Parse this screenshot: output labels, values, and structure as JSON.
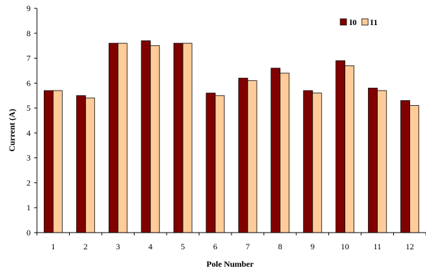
{
  "chart_data": {
    "type": "bar",
    "title": "",
    "xlabel": "Pole Number",
    "ylabel": "Current (A)",
    "categories": [
      "1",
      "2",
      "3",
      "4",
      "5",
      "6",
      "7",
      "8",
      "9",
      "10",
      "11",
      "12"
    ],
    "ylim": [
      0,
      9
    ],
    "yticks": [
      0,
      1,
      2,
      3,
      4,
      5,
      6,
      7,
      8,
      9
    ],
    "grid": false,
    "legend": "top-right",
    "series": [
      {
        "name": "I0",
        "color": "#800000",
        "values": [
          5.7,
          5.5,
          7.6,
          7.7,
          7.6,
          5.6,
          6.2,
          6.6,
          5.7,
          6.9,
          5.8,
          5.3
        ]
      },
      {
        "name": "I1",
        "color": "#FFCC99",
        "values": [
          5.7,
          5.4,
          7.6,
          7.5,
          7.6,
          5.5,
          6.1,
          6.4,
          5.6,
          6.7,
          5.7,
          5.1
        ]
      }
    ]
  }
}
